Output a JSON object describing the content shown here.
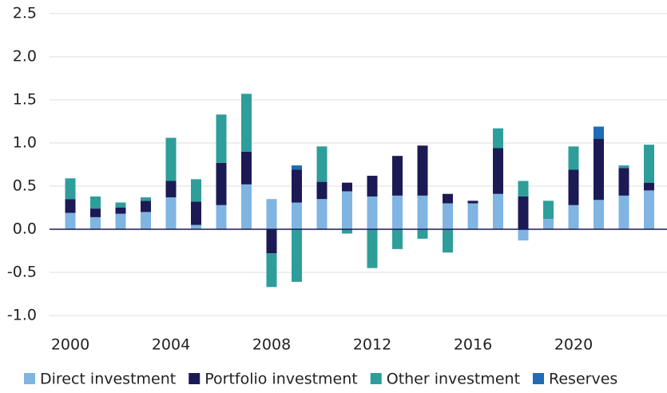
{
  "chart_data": {
    "type": "stacked-bar",
    "categories": [
      "2000",
      null,
      null,
      null,
      "2004",
      null,
      null,
      null,
      "2008",
      null,
      null,
      null,
      "2012",
      null,
      null,
      null,
      "2016",
      null,
      null,
      null,
      "2020",
      null,
      null,
      null
    ],
    "series": [
      {
        "name": "Direct investment",
        "color": "#7fb4e3",
        "values": [
          0.19,
          0.14,
          0.18,
          0.2,
          0.37,
          0.05,
          0.28,
          0.52,
          0.35,
          0.31,
          0.35,
          0.44,
          0.38,
          0.39,
          0.39,
          0.3,
          0.3,
          0.41,
          -0.13,
          0.12,
          0.28,
          0.34,
          0.39,
          0.45
        ]
      },
      {
        "name": "Portfolio investment",
        "color": "#1b1a55",
        "values": [
          0.16,
          0.1,
          0.07,
          0.13,
          0.19,
          0.27,
          0.49,
          0.38,
          -0.28,
          0.38,
          0.2,
          0.1,
          0.24,
          0.46,
          0.58,
          0.11,
          0.03,
          0.53,
          0.38,
          0,
          0.41,
          0.71,
          0.32,
          0.09
        ]
      },
      {
        "name": "Other investment",
        "color": "#2e9e9a",
        "values": [
          0.24,
          0.14,
          0.06,
          0.04,
          0.5,
          0.26,
          0.56,
          0.67,
          -0.39,
          -0.61,
          0.41,
          -0.05,
          -0.45,
          -0.23,
          -0.11,
          -0.27,
          0,
          0.23,
          0.18,
          0.21,
          0.27,
          0,
          0.03,
          0.44
        ]
      },
      {
        "name": "Reserves",
        "color": "#1f6bb5",
        "values": [
          0,
          0,
          0,
          0,
          0,
          0,
          0,
          0,
          0,
          0.05,
          0,
          0,
          0,
          0,
          0,
          0,
          0,
          0,
          0,
          0,
          0,
          0.14,
          0,
          0
        ]
      }
    ],
    "ylim": [
      -1.0,
      2.5
    ],
    "yticks": [
      {
        "value": -1.0,
        "label": "-1.0"
      },
      -0.5,
      {
        "value": 0.0,
        "label": "0.0"
      },
      0.5,
      {
        "value": 1.0,
        "label": "1.0"
      },
      1.5,
      {
        "value": 2.0,
        "label": "2.0"
      },
      2.5
    ],
    "grid": true
  }
}
